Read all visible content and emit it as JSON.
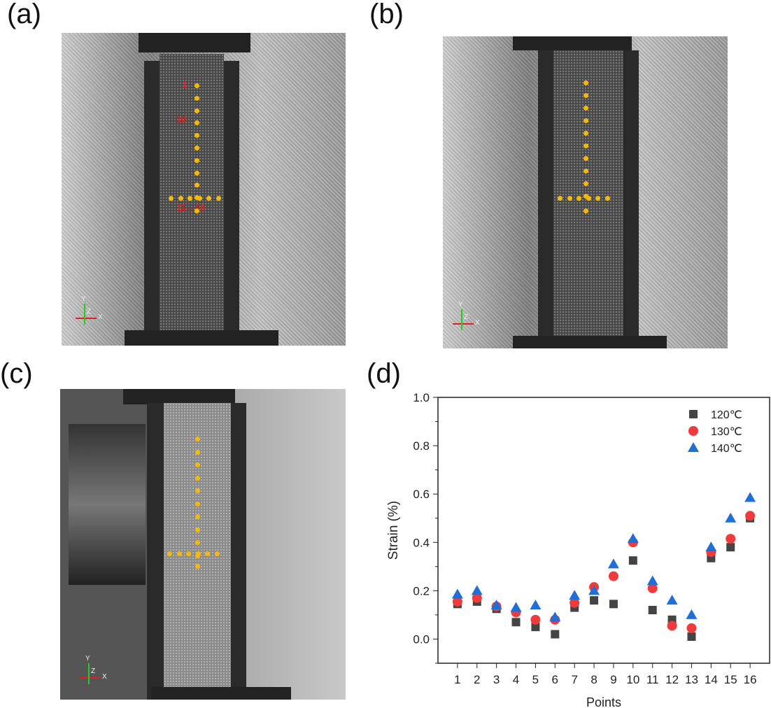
{
  "panels": {
    "a": {
      "label": "(a)",
      "annotations": {
        "start": "1",
        "end": "10",
        "second": "11→16"
      },
      "axes": {
        "y": "Y",
        "z": "Z",
        "x": "X"
      }
    },
    "b": {
      "label": "(b)",
      "axes": {
        "y": "Y",
        "z": "Z",
        "x": "X"
      }
    },
    "c": {
      "label": "(c)",
      "axes": {
        "y": "Y",
        "z": "Z",
        "x": "X"
      }
    },
    "d": {
      "label": "(d)"
    }
  },
  "chart_data": {
    "type": "scatter",
    "title": "",
    "xlabel": "Points",
    "ylabel": "Strain (%)",
    "categories": [
      "1",
      "2",
      "3",
      "4",
      "5",
      "6",
      "7",
      "8",
      "9",
      "10",
      "11",
      "12",
      "13",
      "14",
      "15",
      "16"
    ],
    "xlim": [
      0,
      17
    ],
    "ylim": [
      -0.1,
      1.0
    ],
    "yticks": [
      "0.0",
      "0.2",
      "0.4",
      "0.6",
      "0.8",
      "1.0"
    ],
    "legend_position": "top-right",
    "series": [
      {
        "name": "120℃",
        "marker": "square",
        "color": "#444444",
        "values": [
          0.145,
          0.155,
          0.125,
          0.07,
          0.05,
          0.02,
          0.13,
          0.16,
          0.145,
          0.325,
          0.12,
          0.08,
          0.01,
          0.335,
          0.38,
          0.5
        ]
      },
      {
        "name": "130℃",
        "marker": "circle",
        "color": "#ef3b3b",
        "values": [
          0.155,
          0.17,
          0.135,
          0.11,
          0.08,
          0.08,
          0.15,
          0.215,
          0.26,
          0.4,
          0.21,
          0.055,
          0.045,
          0.36,
          0.415,
          0.51
        ]
      },
      {
        "name": "140℃",
        "marker": "triangle",
        "color": "#1f6fd6",
        "values": [
          0.185,
          0.2,
          0.14,
          0.13,
          0.14,
          0.09,
          0.18,
          0.2,
          0.31,
          0.415,
          0.24,
          0.16,
          0.1,
          0.38,
          0.5,
          0.585
        ]
      }
    ]
  }
}
